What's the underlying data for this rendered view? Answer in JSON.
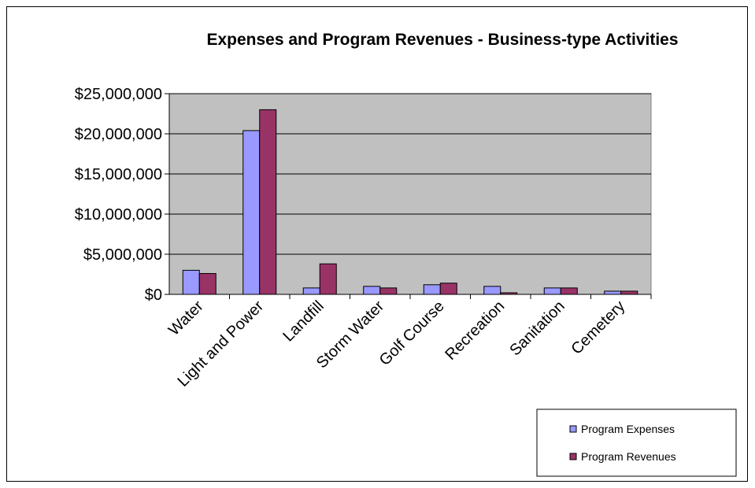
{
  "chart_data": {
    "type": "bar",
    "title": "Expenses and Program Revenues - Business-type Activities",
    "xlabel": "",
    "ylabel": "",
    "categories": [
      "Water",
      "Light and Power",
      "Landfill",
      "Storm Water",
      "Golf Course",
      "Recreation",
      "Sanitation",
      "Cemetery"
    ],
    "series": [
      {
        "name": "Program Expenses",
        "color": "#9999ff",
        "values": [
          3000000,
          20400000,
          800000,
          1000000,
          1200000,
          1000000,
          800000,
          400000
        ]
      },
      {
        "name": "Program Revenues",
        "color": "#993366",
        "values": [
          2600000,
          23000000,
          3800000,
          800000,
          1400000,
          200000,
          800000,
          400000
        ]
      }
    ],
    "ylim": [
      0,
      25000000
    ],
    "yticks": [
      0,
      5000000,
      10000000,
      15000000,
      20000000,
      25000000
    ],
    "ytick_labels": [
      "$0",
      "$5,000,000",
      "$10,000,000",
      "$15,000,000",
      "$20,000,000",
      "$25,000,000"
    ],
    "grid": true,
    "plot_background": "#c0c0c0",
    "legend_position": "bottom-right"
  }
}
